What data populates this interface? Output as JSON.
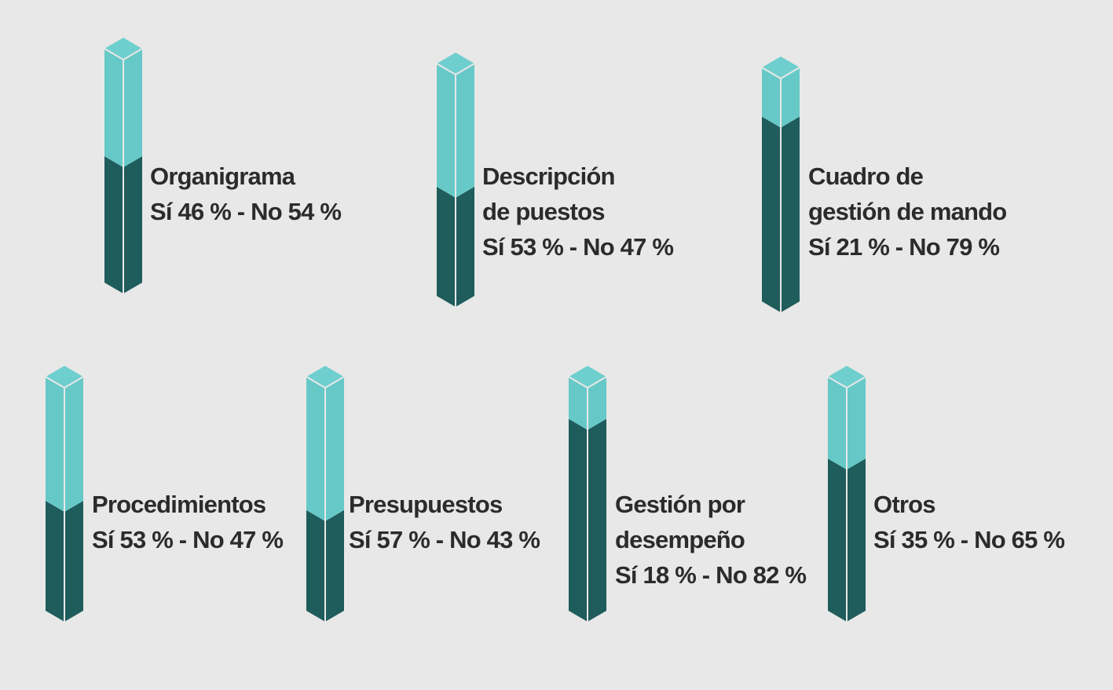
{
  "colors": {
    "si": "#66c9c8",
    "si_top": "#6ecfce",
    "no": "#1f5c5c",
    "edge": "#e7e8e7"
  },
  "chart_data": {
    "type": "bar",
    "categories": [
      "Organigrama",
      "Descripción de puestos",
      "Cuadro de gestión de mando",
      "Procedimientos",
      "Presupuestos",
      "Gestión por desempeño",
      "Otros"
    ],
    "series": [
      {
        "name": "Sí",
        "values": [
          46,
          53,
          21,
          53,
          57,
          18,
          35
        ]
      },
      {
        "name": "No",
        "values": [
          54,
          47,
          79,
          47,
          43,
          82,
          65
        ]
      }
    ],
    "ylim": [
      0,
      100
    ],
    "items": [
      {
        "title_lines": [
          "Organigrama"
        ],
        "result": "Sí 46 % - No 54 %"
      },
      {
        "title_lines": [
          "Descripción",
          "de puestos"
        ],
        "result": "Sí 53 % - No 47 %"
      },
      {
        "title_lines": [
          "Cuadro de",
          "gestión de mando"
        ],
        "result": "Sí 21 % - No 79 %"
      },
      {
        "title_lines": [
          "Procedimientos"
        ],
        "result": "Sí 53 % - No 47 %"
      },
      {
        "title_lines": [
          "Presupuestos"
        ],
        "result": "Sí 57 % - No 43 %"
      },
      {
        "title_lines": [
          "Gestión por",
          "desempeño"
        ],
        "result": "Sí 18 % - No 82 %"
      },
      {
        "title_lines": [
          "Otros"
        ],
        "result": "Sí 35 % - No 65 %"
      }
    ]
  }
}
